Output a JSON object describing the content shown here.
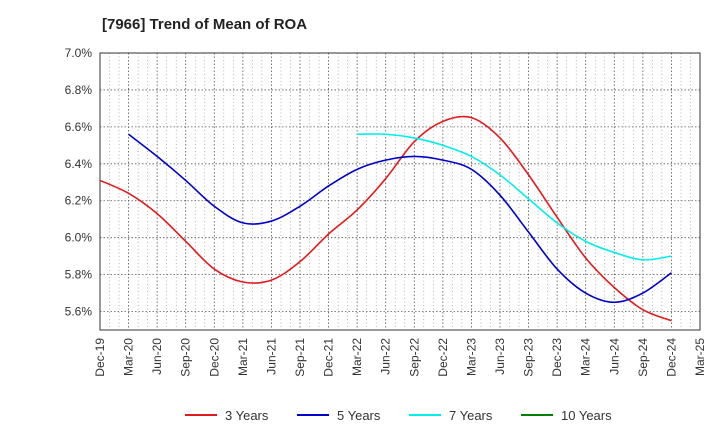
{
  "chart_data": {
    "type": "line",
    "title": "[7966]  Trend of Mean of ROA",
    "xlabel": "",
    "ylabel": "",
    "categories": [
      "Dec-19",
      "Mar-20",
      "Jun-20",
      "Sep-20",
      "Dec-20",
      "Mar-21",
      "Jun-21",
      "Sep-21",
      "Dec-21",
      "Mar-22",
      "Jun-22",
      "Sep-22",
      "Dec-22",
      "Mar-23",
      "Jun-23",
      "Sep-23",
      "Dec-23",
      "Mar-24",
      "Jun-24",
      "Sep-24",
      "Dec-24",
      "Mar-25"
    ],
    "yticks": [
      "5.6%",
      "5.8%",
      "6.0%",
      "6.2%",
      "6.4%",
      "6.6%",
      "6.8%",
      "7.0%"
    ],
    "ytick_values": [
      5.6,
      5.8,
      6.0,
      6.2,
      6.4,
      6.6,
      6.8,
      7.0
    ],
    "ylim": [
      5.5,
      7.0
    ],
    "grid": true,
    "legend_position": "bottom",
    "series": [
      {
        "name": "3 Years",
        "color": "#e31a1c",
        "values": [
          6.31,
          6.24,
          6.13,
          5.98,
          5.83,
          5.76,
          5.77,
          5.87,
          6.02,
          6.15,
          6.32,
          6.52,
          6.63,
          6.65,
          6.54,
          6.34,
          6.11,
          5.89,
          5.73,
          5.61,
          5.55,
          null
        ]
      },
      {
        "name": "5 Years",
        "color": "#0000cc",
        "values": [
          null,
          6.56,
          6.44,
          6.31,
          6.17,
          6.08,
          6.09,
          6.17,
          6.28,
          6.37,
          6.42,
          6.44,
          6.42,
          6.37,
          6.23,
          6.03,
          5.83,
          5.7,
          5.65,
          5.7,
          5.81,
          null
        ]
      },
      {
        "name": "7 Years",
        "color": "#00eeee",
        "values": [
          null,
          null,
          null,
          null,
          null,
          null,
          null,
          null,
          null,
          6.56,
          6.56,
          6.54,
          6.5,
          6.44,
          6.34,
          6.21,
          6.08,
          5.98,
          5.92,
          5.88,
          5.9,
          null
        ]
      },
      {
        "name": "10 Years",
        "color": "#008000",
        "values": [
          null,
          null,
          null,
          null,
          null,
          null,
          null,
          null,
          null,
          null,
          null,
          null,
          null,
          null,
          null,
          null,
          null,
          null,
          null,
          null,
          null,
          null
        ]
      }
    ]
  }
}
